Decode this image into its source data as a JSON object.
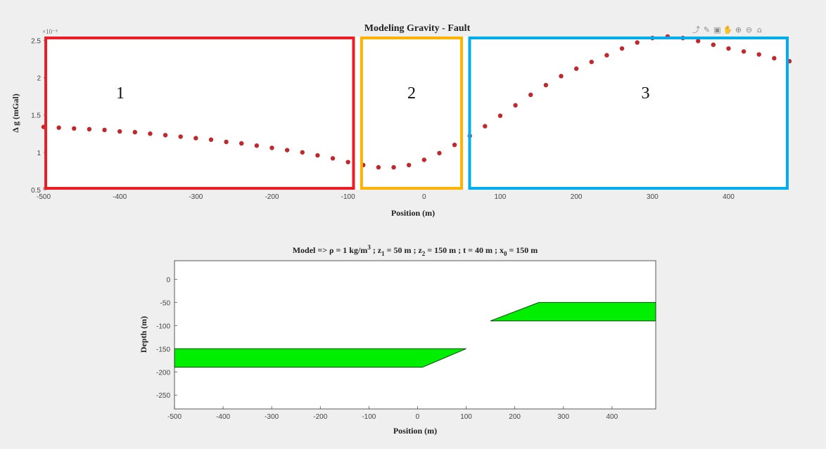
{
  "toolbar": {
    "icons": [
      "export-icon",
      "brush-icon",
      "datatip-icon",
      "pan-hand-icon",
      "zoom-in-icon",
      "zoom-out-icon",
      "home-icon"
    ]
  },
  "chart_data": [
    {
      "type": "scatter",
      "title": "Modeling Gravity - Fault",
      "xlabel": "Position (m)",
      "ylabel": "Δ g (mGal)",
      "y_exponent_label": "×10⁻³",
      "xlim": [
        -500,
        480
      ],
      "ylim": [
        0.5,
        2.55
      ],
      "xticks": [
        -500,
        -400,
        -300,
        -200,
        -100,
        0,
        100,
        200,
        300,
        400
      ],
      "yticks": [
        0.5,
        1,
        1.5,
        2,
        2.5
      ],
      "ytick_labels": [
        "0.5",
        "1",
        "1.5",
        "2",
        "2.5"
      ],
      "marker_color": "#c0282d",
      "x": [
        -500,
        -480,
        -460,
        -440,
        -420,
        -400,
        -380,
        -360,
        -340,
        -320,
        -300,
        -280,
        -260,
        -240,
        -220,
        -200,
        -180,
        -160,
        -140,
        -120,
        -100,
        -80,
        -60,
        -40,
        -20,
        0,
        20,
        40,
        60,
        80,
        100,
        120,
        140,
        160,
        180,
        200,
        220,
        240,
        260,
        280,
        300,
        320,
        340,
        360,
        380,
        400,
        420,
        440,
        460,
        480
      ],
      "y": [
        1.34,
        1.33,
        1.32,
        1.31,
        1.3,
        1.28,
        1.27,
        1.25,
        1.23,
        1.21,
        1.19,
        1.17,
        1.14,
        1.12,
        1.09,
        1.06,
        1.03,
        1.0,
        0.96,
        0.92,
        0.87,
        0.83,
        0.8,
        0.8,
        0.83,
        0.9,
        0.99,
        1.1,
        1.22,
        1.35,
        1.49,
        1.63,
        1.77,
        1.9,
        2.02,
        2.12,
        2.21,
        2.3,
        2.39,
        2.47,
        2.53,
        2.55,
        2.53,
        2.49,
        2.44,
        2.39,
        2.35,
        2.31,
        2.26,
        2.22
      ],
      "annotations": [
        {
          "label": "1",
          "x_range": [
            -500,
            -90
          ],
          "color": "#ee1c24"
        },
        {
          "label": "2",
          "x_range": [
            -85,
            52
          ],
          "color": "#ffb300"
        },
        {
          "label": "3",
          "x_range": [
            57,
            480
          ],
          "color": "#00aeef"
        }
      ]
    },
    {
      "type": "area",
      "title_parts": {
        "prefix": "Model => ρ = 1 kg/m",
        "rho_exp": "3",
        "z1_pre": " ; z",
        "z1_sub": "1",
        "z1_val": " = 50 m ; z",
        "z2_sub": "2",
        "z2_val": " = 150 m ; t = 40 m ; x",
        "x0_sub": "0",
        "x0_val": " = 150 m"
      },
      "xlabel": "Position (m)",
      "ylabel": "Depth (m)",
      "xlim": [
        -500,
        490
      ],
      "ylim": [
        -280,
        40
      ],
      "xticks": [
        -500,
        -400,
        -300,
        -200,
        -100,
        0,
        100,
        200,
        300,
        400
      ],
      "yticks": [
        0,
        -50,
        -100,
        -150,
        -200,
        -250
      ],
      "fill_color": "#00ee00",
      "polygons": [
        {
          "points": [
            [
              -500,
              -150
            ],
            [
              100,
              -150
            ],
            [
              10,
              -190
            ],
            [
              -500,
              -190
            ]
          ]
        },
        {
          "points": [
            [
              150,
              -90
            ],
            [
              250,
              -50
            ],
            [
              490,
              -50
            ],
            [
              490,
              -90
            ]
          ]
        }
      ]
    }
  ]
}
